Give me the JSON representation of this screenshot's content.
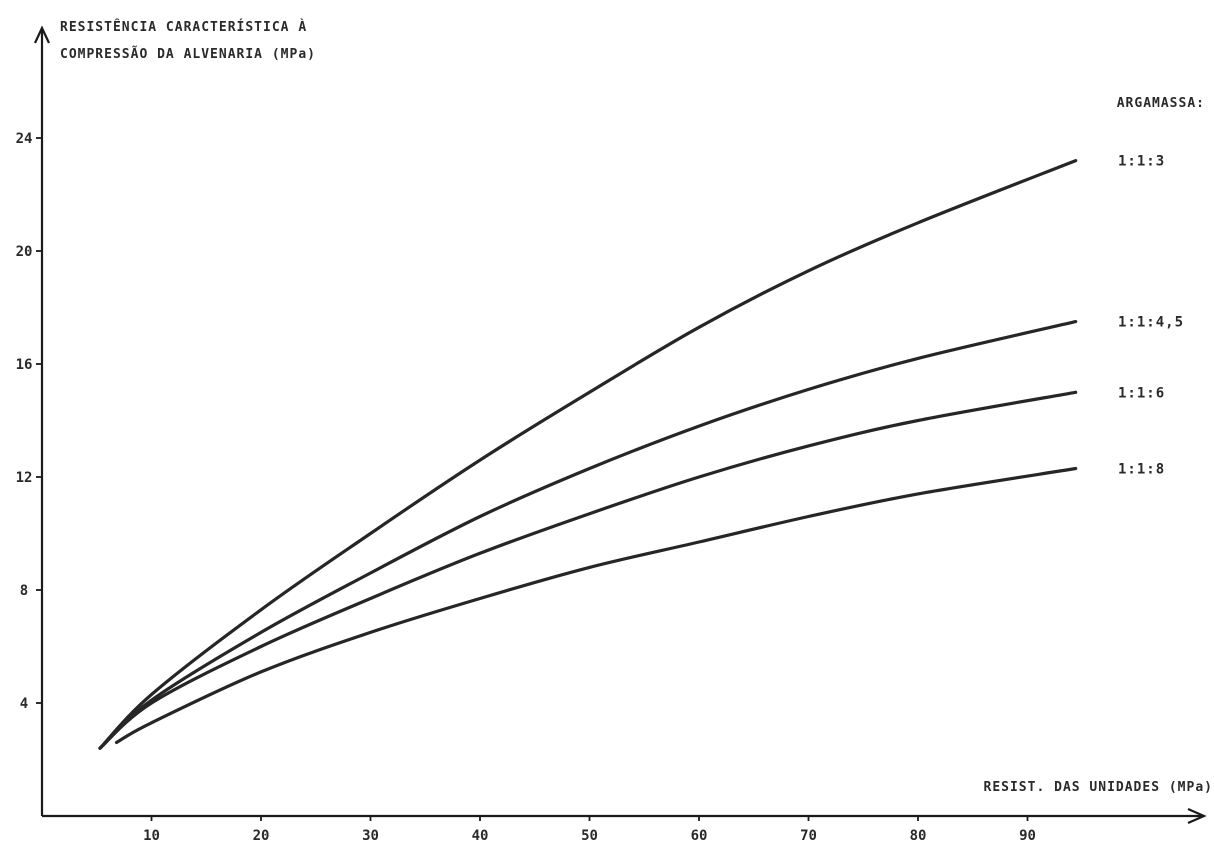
{
  "chart_data": {
    "type": "line",
    "ylabel_line1": "RESISTÊNCIA CARACTERÍSTICA À",
    "ylabel_line2": "COMPRESSÃO DA ALVENARIA (MPa)",
    "xlabel": "RESIST. DAS UNIDADES (MPa)",
    "legend_title": "ARGAMASSA:",
    "xlim": [
      0,
      104
    ],
    "ylim": [
      0,
      28
    ],
    "x_ticks": [
      10,
      20,
      30,
      40,
      50,
      60,
      70,
      80,
      90
    ],
    "y_ticks": [
      4,
      8,
      12,
      16,
      20,
      24
    ],
    "grid": false,
    "series": [
      {
        "name": "1:1:3",
        "points": [
          [
            5.3,
            2.4
          ],
          [
            10,
            4.3
          ],
          [
            20,
            7.3
          ],
          [
            30,
            10.0
          ],
          [
            40,
            12.6
          ],
          [
            50,
            15.0
          ],
          [
            60,
            17.3
          ],
          [
            70,
            19.3
          ],
          [
            80,
            21.0
          ],
          [
            94.4,
            23.2
          ]
        ]
      },
      {
        "name": "1:1:4,5",
        "points": [
          [
            5.3,
            2.4
          ],
          [
            10,
            4.1
          ],
          [
            20,
            6.5
          ],
          [
            30,
            8.6
          ],
          [
            40,
            10.6
          ],
          [
            50,
            12.3
          ],
          [
            60,
            13.8
          ],
          [
            70,
            15.1
          ],
          [
            80,
            16.2
          ],
          [
            94.4,
            17.5
          ]
        ]
      },
      {
        "name": "1:1:6",
        "points": [
          [
            5.3,
            2.4
          ],
          [
            10,
            4.0
          ],
          [
            20,
            6.0
          ],
          [
            30,
            7.7
          ],
          [
            40,
            9.3
          ],
          [
            50,
            10.7
          ],
          [
            60,
            12.0
          ],
          [
            70,
            13.1
          ],
          [
            80,
            14.0
          ],
          [
            94.4,
            15.0
          ]
        ]
      },
      {
        "name": "1:1:8",
        "points": [
          [
            6.8,
            2.6
          ],
          [
            10,
            3.3
          ],
          [
            20,
            5.1
          ],
          [
            30,
            6.5
          ],
          [
            40,
            7.7
          ],
          [
            50,
            8.8
          ],
          [
            60,
            9.7
          ],
          [
            70,
            10.6
          ],
          [
            80,
            11.4
          ],
          [
            94.4,
            12.3
          ]
        ]
      }
    ]
  }
}
